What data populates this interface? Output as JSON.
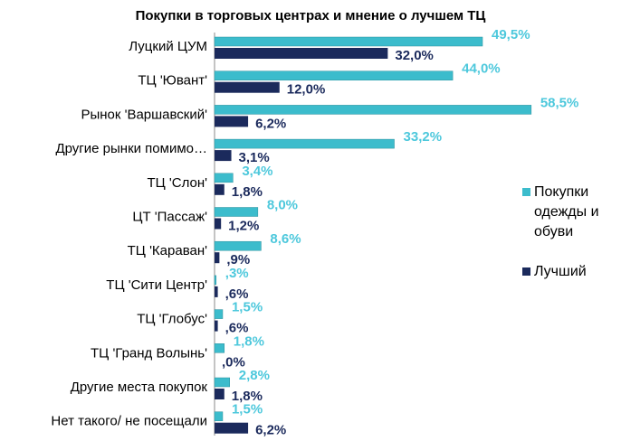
{
  "chart_data": {
    "type": "bar",
    "orientation": "horizontal",
    "title": "Покупки в торговых центрах и мнение о лучшем ТЦ",
    "categories": [
      "Луцкий ЦУМ",
      "ТЦ 'Ювант'",
      "Рынок 'Варшавский'",
      "Другие рынки помимо…",
      "ТЦ 'Слон'",
      "ЦТ 'Пассаж'",
      "ТЦ 'Караван'",
      "ТЦ 'Сити Центр'",
      "ТЦ 'Глобус'",
      "ТЦ 'Гранд Волынь'",
      "Другие места покупок",
      "Нет такого/ не посещали"
    ],
    "series": [
      {
        "name": "Покупки одежды и обуви",
        "color": "#3cbccc",
        "values": [
          49.5,
          44.0,
          58.5,
          33.2,
          3.4,
          8.0,
          8.6,
          0.3,
          1.5,
          1.8,
          2.8,
          1.5
        ],
        "value_labels": [
          "49,5%",
          "44,0%",
          "58,5%",
          "33,2%",
          "3,4%",
          "8,0%",
          "8,6%",
          ",3%",
          "1,5%",
          "1,8%",
          "2,8%",
          "1,5%"
        ]
      },
      {
        "name": "Лучший",
        "color": "#1b2a5c",
        "values": [
          32.0,
          12.0,
          6.2,
          3.1,
          1.8,
          1.2,
          0.9,
          0.6,
          0.6,
          0.0,
          1.8,
          6.2
        ],
        "value_labels": [
          "32,0%",
          "12,0%",
          "6,2%",
          "3,1%",
          "1,8%",
          "1,2%",
          ",9%",
          ",6%",
          ",6%",
          ",0%",
          "1,8%",
          "6,2%"
        ]
      }
    ],
    "legend": "right"
  }
}
